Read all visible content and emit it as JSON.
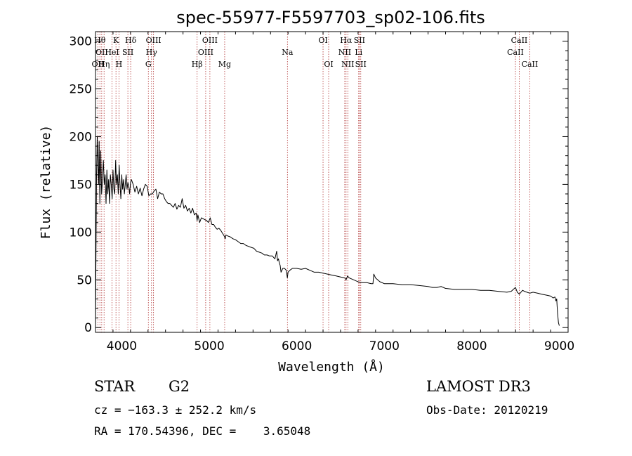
{
  "chart_data": {
    "type": "line",
    "title": "spec-55977-F5597703_sp02-106.fits",
    "xlabel": "Wavelength (Å)",
    "ylabel": "Flux (relative)",
    "xlim": [
      3700,
      9100
    ],
    "ylim": [
      -5,
      310
    ],
    "xticks": [
      4000,
      5000,
      6000,
      7000,
      8000,
      9000
    ],
    "yticks": [
      0,
      50,
      100,
      150,
      200,
      250,
      300
    ],
    "series": [
      {
        "name": "spectrum",
        "color": "#000000",
        "x": [
          3700,
          3705,
          3712,
          3720,
          3728,
          3735,
          3742,
          3750,
          3760,
          3770,
          3780,
          3790,
          3800,
          3810,
          3820,
          3830,
          3840,
          3850,
          3860,
          3870,
          3880,
          3890,
          3900,
          3910,
          3920,
          3930,
          3940,
          3950,
          3960,
          3970,
          3980,
          3990,
          4000,
          4010,
          4020,
          4030,
          4040,
          4050,
          4060,
          4070,
          4080,
          4090,
          4100,
          4110,
          4130,
          4150,
          4170,
          4190,
          4210,
          4230,
          4250,
          4270,
          4290,
          4310,
          4330,
          4350,
          4370,
          4390,
          4410,
          4430,
          4450,
          4470,
          4490,
          4510,
          4530,
          4550,
          4570,
          4590,
          4610,
          4630,
          4650,
          4670,
          4690,
          4710,
          4730,
          4750,
          4770,
          4790,
          4810,
          4830,
          4850,
          4861,
          4870,
          4890,
          4910,
          4930,
          4950,
          4970,
          4990,
          5010,
          5030,
          5050,
          5070,
          5090,
          5110,
          5130,
          5150,
          5170,
          5183,
          5190,
          5210,
          5240,
          5270,
          5300,
          5330,
          5360,
          5390,
          5420,
          5450,
          5480,
          5510,
          5540,
          5570,
          5600,
          5630,
          5660,
          5690,
          5720,
          5750,
          5770,
          5780,
          5790,
          5800,
          5810,
          5820,
          5840,
          5860,
          5880,
          5892,
          5900,
          5920,
          5950,
          6000,
          6050,
          6100,
          6150,
          6200,
          6250,
          6300,
          6350,
          6400,
          6450,
          6500,
          6550,
          6563,
          6580,
          6600,
          6650,
          6700,
          6750,
          6800,
          6850,
          6870,
          6880,
          6900,
          6950,
          7000,
          7100,
          7200,
          7300,
          7400,
          7500,
          7550,
          7600,
          7650,
          7700,
          7800,
          7900,
          8000,
          8100,
          8200,
          8300,
          8400,
          8450,
          8498,
          8520,
          8542,
          8580,
          8600,
          8662,
          8700,
          8750,
          8800,
          8850,
          8900,
          8930,
          8950,
          8960,
          8970,
          8975,
          8980,
          8990,
          9000
        ],
        "values": [
          2,
          70,
          160,
          200,
          168,
          150,
          195,
          130,
          185,
          140,
          155,
          175,
          150,
          160,
          130,
          165,
          140,
          155,
          130,
          160,
          150,
          135,
          165,
          145,
          140,
          175,
          150,
          160,
          140,
          170,
          150,
          135,
          160,
          145,
          155,
          140,
          150,
          160,
          145,
          152,
          148,
          140,
          152,
          155,
          150,
          142,
          148,
          140,
          146,
          138,
          145,
          150,
          148,
          138,
          140,
          140,
          143,
          145,
          135,
          142,
          140,
          140,
          135,
          132,
          130,
          130,
          128,
          126,
          130,
          124,
          128,
          126,
          135,
          125,
          128,
          122,
          125,
          120,
          125,
          118,
          120,
          112,
          118,
          110,
          115,
          114,
          113,
          112,
          110,
          115,
          108,
          108,
          105,
          103,
          104,
          102,
          99,
          96,
          93,
          97,
          96,
          95,
          93,
          92,
          90,
          88,
          88,
          86,
          85,
          84,
          83,
          80,
          79,
          78,
          76,
          76,
          75,
          75,
          72,
          80,
          70,
          72,
          68,
          65,
          58,
          62,
          62,
          60,
          52,
          58,
          60,
          62,
          62,
          61,
          62,
          60,
          58,
          58,
          57,
          56,
          55,
          54,
          53,
          52,
          50,
          54,
          52,
          50,
          48,
          47,
          47,
          46,
          46,
          56,
          52,
          48,
          46,
          46,
          45,
          45,
          44,
          43,
          42,
          42,
          43,
          41,
          40,
          40,
          40,
          39,
          39,
          38,
          37,
          38,
          42,
          37,
          35,
          39,
          38,
          36,
          37,
          36,
          35,
          34,
          33,
          31,
          32,
          28,
          30,
          22,
          15,
          5,
          2
        ]
      }
    ],
    "lines": [
      {
        "w": 3727,
        "labels": [
          "OII"
        ],
        "row": 2
      },
      {
        "w": 3750,
        "labels": [
          "Hθ"
        ],
        "row": 0
      },
      {
        "w": 3771,
        "labels": [
          "OII"
        ],
        "row": 1
      },
      {
        "w": 3798,
        "labels": [
          "Hη"
        ],
        "row": 2
      },
      {
        "w": 3889,
        "labels": [
          "HeI"
        ],
        "row": 1
      },
      {
        "w": 3934,
        "labels": [
          "K"
        ],
        "row": 0
      },
      {
        "w": 3968,
        "labels": [
          "H"
        ],
        "row": 2
      },
      {
        "w": 4070,
        "labels": [
          "SII"
        ],
        "row": 1
      },
      {
        "w": 4102,
        "labels": [
          "Hδ"
        ],
        "row": 0
      },
      {
        "w": 4304,
        "labels": [
          "G"
        ],
        "row": 2
      },
      {
        "w": 4340,
        "labels": [
          "Hγ"
        ],
        "row": 1
      },
      {
        "w": 4363,
        "labels": [
          "OIII"
        ],
        "row": 0
      },
      {
        "w": 4861,
        "labels": [
          "Hβ"
        ],
        "row": 2
      },
      {
        "w": 4959,
        "labels": [
          "OIII"
        ],
        "row": 1
      },
      {
        "w": 5007,
        "labels": [
          "OIII"
        ],
        "row": 0
      },
      {
        "w": 5176,
        "labels": [
          "Mg"
        ],
        "row": 2
      },
      {
        "w": 5893,
        "labels": [
          "Na"
        ],
        "row": 1
      },
      {
        "w": 6300,
        "labels": [
          "OI"
        ],
        "row": 0
      },
      {
        "w": 6364,
        "labels": [
          "OI"
        ],
        "row": 2
      },
      {
        "w": 6548,
        "labels": [
          "NII"
        ],
        "row": 1
      },
      {
        "w": 6563,
        "labels": [
          "Hα"
        ],
        "row": 0
      },
      {
        "w": 6583,
        "labels": [
          "NII"
        ],
        "row": 2
      },
      {
        "w": 6707,
        "labels": [
          "Li"
        ],
        "row": 1
      },
      {
        "w": 6716,
        "labels": [
          "SII"
        ],
        "row": 0
      },
      {
        "w": 6731,
        "labels": [
          "SII"
        ],
        "row": 2
      },
      {
        "w": 8498,
        "labels": [
          "CaII"
        ],
        "row": 1
      },
      {
        "w": 8542,
        "labels": [
          "CaII"
        ],
        "row": 0
      },
      {
        "w": 8662,
        "labels": [
          "CaII"
        ],
        "row": 2
      }
    ]
  },
  "info": {
    "class": "STAR",
    "subclass": "G2",
    "survey": "LAMOST DR3",
    "cz": "cz = −163.3 ± 252.2 km/s",
    "obs_date": "Obs-Date: 20120219",
    "coords": "RA = 170.54396, DEC =    3.65048"
  }
}
